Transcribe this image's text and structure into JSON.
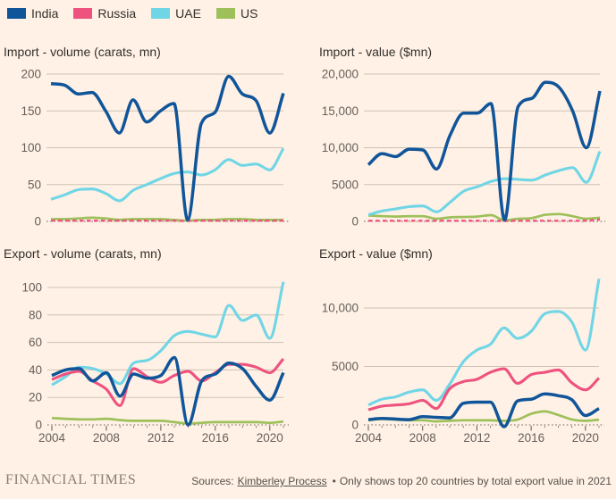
{
  "legend": {
    "items": [
      {
        "label": "India",
        "color": "#10559A"
      },
      {
        "label": "Russia",
        "color": "#EE527E"
      },
      {
        "label": "UAE",
        "color": "#70D6E6"
      },
      {
        "label": "US",
        "color": "#9EC05A"
      }
    ]
  },
  "colors": {
    "background": "#FFF1E5",
    "gridline": "#CDC2B5",
    "axis": "#6B655F",
    "tick_text": "#66605C",
    "title_text": "#33302C"
  },
  "chart_data": [
    {
      "type": "line",
      "title": "Import - volume (carats, mn)",
      "x": [
        2004,
        2005,
        2006,
        2007,
        2008,
        2009,
        2010,
        2011,
        2012,
        2013,
        2014,
        2015,
        2016,
        2017,
        2018,
        2019,
        2020,
        2021
      ],
      "x_axis_labels": [],
      "yticks": [
        {
          "v": 0,
          "label": "0"
        },
        {
          "v": 50,
          "label": "50"
        },
        {
          "v": 100,
          "label": "100"
        },
        {
          "v": 150,
          "label": "150"
        },
        {
          "v": 200,
          "label": "200"
        }
      ],
      "ylim": [
        0,
        200
      ],
      "series": [
        {
          "name": "India",
          "line_style": "solid",
          "values": [
            187,
            185,
            173,
            175,
            150,
            120,
            165,
            135,
            150,
            160,
            2,
            133,
            148,
            197,
            173,
            164,
            120,
            174
          ]
        },
        {
          "name": "Russia",
          "line_style": "dashed",
          "values": [
            1,
            1,
            1,
            1,
            1,
            1,
            1,
            1,
            1,
            1,
            0.5,
            1,
            1,
            1,
            1,
            1,
            1,
            1
          ]
        },
        {
          "name": "UAE",
          "line_style": "solid",
          "values": [
            30,
            36,
            43,
            44,
            38,
            28,
            42,
            50,
            58,
            65,
            67,
            63,
            70,
            84,
            76,
            78,
            70,
            99
          ]
        },
        {
          "name": "US",
          "line_style": "solid",
          "values": [
            3,
            3,
            4,
            5,
            4,
            2,
            3,
            3,
            3,
            2,
            1,
            2,
            2,
            3,
            3,
            2,
            2,
            2
          ]
        }
      ]
    },
    {
      "type": "line",
      "title": "Import - value ($mn)",
      "x": [
        2004,
        2005,
        2006,
        2007,
        2008,
        2009,
        2010,
        2011,
        2012,
        2013,
        2014,
        2015,
        2016,
        2017,
        2018,
        2019,
        2020,
        2021
      ],
      "x_axis_labels": [],
      "yticks": [
        {
          "v": 0,
          "label": "0"
        },
        {
          "v": 5000,
          "label": "5000"
        },
        {
          "v": 10000,
          "label": "10,000"
        },
        {
          "v": 15000,
          "label": "15,000"
        },
        {
          "v": 20000,
          "label": "20,000"
        }
      ],
      "ylim": [
        0,
        20000
      ],
      "series": [
        {
          "name": "India",
          "line_style": "solid",
          "values": [
            7700,
            9200,
            8800,
            9800,
            9700,
            7100,
            11700,
            14700,
            14700,
            16000,
            200,
            15600,
            16700,
            18900,
            18200,
            15000,
            10000,
            17700
          ]
        },
        {
          "name": "Russia",
          "line_style": "dashed",
          "values": [
            80,
            80,
            80,
            80,
            80,
            80,
            80,
            80,
            80,
            80,
            50,
            80,
            80,
            80,
            80,
            80,
            100,
            250
          ]
        },
        {
          "name": "UAE",
          "line_style": "solid",
          "values": [
            900,
            1400,
            1700,
            2000,
            2100,
            1300,
            2600,
            4100,
            4700,
            5400,
            5800,
            5700,
            5600,
            6300,
            6900,
            7300,
            5300,
            9500
          ]
        },
        {
          "name": "US",
          "line_style": "solid",
          "values": [
            800,
            700,
            650,
            700,
            700,
            350,
            550,
            600,
            650,
            850,
            150,
            350,
            450,
            900,
            1000,
            700,
            350,
            500
          ]
        }
      ]
    },
    {
      "type": "line",
      "title": "Export - volume (carats, mn)",
      "x": [
        2004,
        2005,
        2006,
        2007,
        2008,
        2009,
        2010,
        2011,
        2012,
        2013,
        2014,
        2015,
        2016,
        2017,
        2018,
        2019,
        2020,
        2021
      ],
      "x_axis_labels": [
        2004,
        2008,
        2012,
        2016,
        2020
      ],
      "yticks": [
        {
          "v": 0,
          "label": "0"
        },
        {
          "v": 20,
          "label": "20"
        },
        {
          "v": 40,
          "label": "40"
        },
        {
          "v": 60,
          "label": "60"
        },
        {
          "v": 80,
          "label": "80"
        },
        {
          "v": 100,
          "label": "100"
        }
      ],
      "ylim": [
        0,
        100
      ],
      "series": [
        {
          "name": "India",
          "line_style": "solid",
          "values": [
            36,
            40,
            41,
            32,
            38,
            21,
            37,
            34,
            36,
            49,
            0,
            32,
            37,
            45,
            41,
            28,
            18,
            38
          ]
        },
        {
          "name": "Russia",
          "line_style": "solid",
          "values": [
            33,
            37,
            39,
            32,
            26,
            14,
            41,
            35,
            31,
            36,
            39,
            32,
            38,
            44,
            44,
            42,
            38,
            48
          ]
        },
        {
          "name": "UAE",
          "line_style": "solid",
          "values": [
            29,
            35,
            42,
            41,
            37,
            30,
            45,
            47,
            54,
            65,
            68,
            66,
            64,
            87,
            76,
            80,
            63,
            104
          ]
        },
        {
          "name": "US",
          "line_style": "solid",
          "values": [
            5,
            4.5,
            4,
            4,
            4.5,
            3.5,
            3,
            3,
            3,
            2,
            1,
            1.5,
            2,
            2,
            2,
            2,
            1.5,
            2.5
          ]
        }
      ]
    },
    {
      "type": "line",
      "title": "Export - value ($mn)",
      "x": [
        2004,
        2005,
        2006,
        2007,
        2008,
        2009,
        2010,
        2011,
        2012,
        2013,
        2014,
        2015,
        2016,
        2017,
        2018,
        2019,
        2020,
        2021
      ],
      "x_axis_labels": [
        2004,
        2008,
        2012,
        2016,
        2020
      ],
      "yticks": [
        {
          "v": 0,
          "label": "0"
        },
        {
          "v": 5000,
          "label": "5000"
        },
        {
          "v": 10000,
          "label": "10,000"
        }
      ],
      "ylim": [
        0,
        13000
      ],
      "series": [
        {
          "name": "India",
          "line_style": "solid",
          "values": [
            450,
            550,
            500,
            450,
            700,
            650,
            600,
            1850,
            1950,
            1950,
            -150,
            2050,
            2200,
            2650,
            2500,
            2150,
            800,
            1400
          ]
        },
        {
          "name": "Russia",
          "line_style": "solid",
          "values": [
            1300,
            1600,
            1700,
            1800,
            2100,
            1400,
            3100,
            3700,
            3900,
            4500,
            4800,
            3550,
            4300,
            4500,
            4700,
            3600,
            3000,
            4000
          ]
        },
        {
          "name": "UAE",
          "line_style": "solid",
          "values": [
            1700,
            2200,
            2400,
            2800,
            3000,
            2100,
            3500,
            5400,
            6400,
            6900,
            8300,
            7400,
            8000,
            9500,
            9700,
            8800,
            6400,
            12500
          ]
        },
        {
          "name": "US",
          "line_style": "solid",
          "values": [
            400,
            500,
            450,
            400,
            400,
            300,
            350,
            400,
            400,
            390,
            350,
            450,
            950,
            1150,
            850,
            465,
            350,
            450
          ]
        }
      ]
    }
  ],
  "footer": {
    "brand": "FINANCIAL TIMES",
    "source_prefix": "Sources:",
    "source_link": "Kimberley Process",
    "source_bullet": "•",
    "source_suffix": "Only shows top 20 countries by total export value in 2021"
  }
}
